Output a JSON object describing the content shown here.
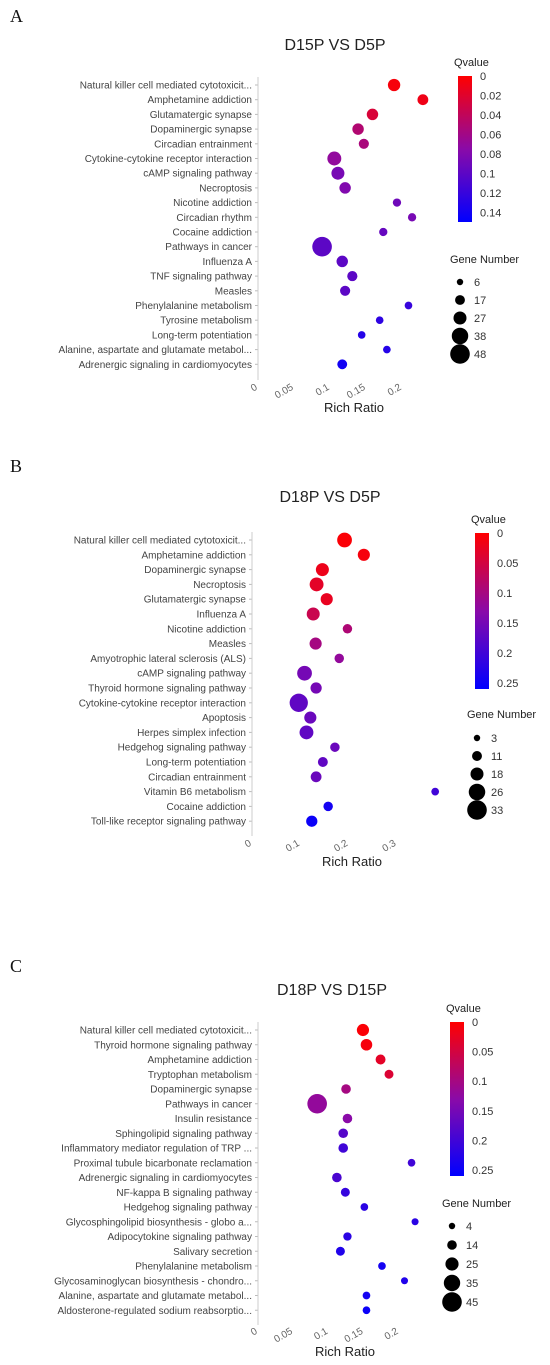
{
  "chart_data": [
    {
      "panel": "A",
      "type": "scatter",
      "title": "D15P VS D5P",
      "xlabel": "Rich Ratio",
      "ylabel": "",
      "xlim": [
        0,
        0.25
      ],
      "xticks": [
        "0",
        "0.05",
        "0.1",
        "0.15",
        "0.2"
      ],
      "color_legend": {
        "title": "Qvalue",
        "range": [
          0,
          0.15
        ],
        "ticks": [
          "0",
          "0.02",
          "0.04",
          "0.06",
          "0.08",
          "0.1",
          "0.12",
          "0.14"
        ]
      },
      "size_legend": {
        "title": "Gene Number",
        "values": [
          "6",
          "17",
          "27",
          "38",
          "48"
        ]
      },
      "grid": false,
      "points": [
        {
          "category": "Natural killer cell mediated cytotoxicit...",
          "x": 0.189,
          "q": 0.005,
          "genes": 25
        },
        {
          "category": "Amphetamine addiction",
          "x": 0.229,
          "q": 0.01,
          "genes": 20
        },
        {
          "category": "Glutamatergic synapse",
          "x": 0.159,
          "q": 0.025,
          "genes": 22
        },
        {
          "category": "Dopaminergic synapse",
          "x": 0.139,
          "q": 0.05,
          "genes": 22
        },
        {
          "category": "Circadian entrainment",
          "x": 0.147,
          "q": 0.055,
          "genes": 18
        },
        {
          "category": "Cytokine-cytokine receptor interaction",
          "x": 0.106,
          "q": 0.07,
          "genes": 30
        },
        {
          "category": "cAMP signaling pathway",
          "x": 0.111,
          "q": 0.085,
          "genes": 27
        },
        {
          "category": "Necroptosis",
          "x": 0.121,
          "q": 0.08,
          "genes": 22
        },
        {
          "category": "Nicotine addiction",
          "x": 0.193,
          "q": 0.09,
          "genes": 12
        },
        {
          "category": "Circadian rhythm",
          "x": 0.214,
          "q": 0.085,
          "genes": 12
        },
        {
          "category": "Cocaine addiction",
          "x": 0.174,
          "q": 0.095,
          "genes": 12
        },
        {
          "category": "Pathways in cancer",
          "x": 0.089,
          "q": 0.1,
          "genes": 48
        },
        {
          "category": "Influenza A",
          "x": 0.117,
          "q": 0.1,
          "genes": 22
        },
        {
          "category": "TNF signaling pathway",
          "x": 0.131,
          "q": 0.1,
          "genes": 18
        },
        {
          "category": "Measles",
          "x": 0.121,
          "q": 0.1,
          "genes": 18
        },
        {
          "category": "Phenylalanine metabolism",
          "x": 0.209,
          "q": 0.12,
          "genes": 10
        },
        {
          "category": "Tyrosine metabolism",
          "x": 0.169,
          "q": 0.125,
          "genes": 10
        },
        {
          "category": "Long-term potentiation",
          "x": 0.144,
          "q": 0.13,
          "genes": 10
        },
        {
          "category": "Alanine, aspartate and glutamate metabol...",
          "x": 0.179,
          "q": 0.13,
          "genes": 10
        },
        {
          "category": "Adrenergic signaling in cardiomyocytes",
          "x": 0.117,
          "q": 0.14,
          "genes": 17
        }
      ]
    },
    {
      "panel": "B",
      "type": "scatter",
      "title": "D18P VS D5P",
      "xlabel": "Rich Ratio",
      "ylabel": "",
      "xlim": [
        0,
        0.39
      ],
      "xticks": [
        "0",
        "0.1",
        "0.2",
        "0.3"
      ],
      "color_legend": {
        "title": "Qvalue",
        "range": [
          0,
          0.26
        ],
        "ticks": [
          "0",
          "0.05",
          "0.1",
          "0.15",
          "0.2",
          "0.25"
        ]
      },
      "size_legend": {
        "title": "Gene Number",
        "values": [
          "3",
          "11",
          "18",
          "26",
          "33"
        ]
      },
      "grid": false,
      "points": [
        {
          "category": "Natural killer cell mediated cytotoxicit...",
          "x": 0.192,
          "q": 0.005,
          "genes": 22
        },
        {
          "category": "Amphetamine addiction",
          "x": 0.232,
          "q": 0.01,
          "genes": 16
        },
        {
          "category": "Dopaminergic synapse",
          "x": 0.146,
          "q": 0.02,
          "genes": 18
        },
        {
          "category": "Necroptosis",
          "x": 0.134,
          "q": 0.03,
          "genes": 20
        },
        {
          "category": "Glutamatergic synapse",
          "x": 0.155,
          "q": 0.025,
          "genes": 16
        },
        {
          "category": "Influenza A",
          "x": 0.127,
          "q": 0.06,
          "genes": 18
        },
        {
          "category": "Nicotine addiction",
          "x": 0.198,
          "q": 0.09,
          "genes": 10
        },
        {
          "category": "Measles",
          "x": 0.132,
          "q": 0.1,
          "genes": 16
        },
        {
          "category": "Amyotrophic lateral sclerosis (ALS)",
          "x": 0.181,
          "q": 0.12,
          "genes": 10
        },
        {
          "category": "cAMP signaling pathway",
          "x": 0.109,
          "q": 0.15,
          "genes": 22
        },
        {
          "category": "Thyroid hormone signaling pathway",
          "x": 0.133,
          "q": 0.15,
          "genes": 14
        },
        {
          "category": "Cytokine-cytokine receptor interaction",
          "x": 0.097,
          "q": 0.17,
          "genes": 30
        },
        {
          "category": "Apoptosis",
          "x": 0.121,
          "q": 0.16,
          "genes": 16
        },
        {
          "category": "Herpes simplex infection",
          "x": 0.113,
          "q": 0.17,
          "genes": 20
        },
        {
          "category": "Hedgehog signaling pathway",
          "x": 0.172,
          "q": 0.16,
          "genes": 10
        },
        {
          "category": "Long-term potentiation",
          "x": 0.147,
          "q": 0.17,
          "genes": 11
        },
        {
          "category": "Circadian entrainment",
          "x": 0.133,
          "q": 0.16,
          "genes": 13
        },
        {
          "category": "Vitamin B6 metabolism",
          "x": 0.38,
          "q": 0.2,
          "genes": 6
        },
        {
          "category": "Cocaine addiction",
          "x": 0.158,
          "q": 0.24,
          "genes": 10
        },
        {
          "category": "Toll-like receptor signaling pathway",
          "x": 0.124,
          "q": 0.25,
          "genes": 14
        }
      ]
    },
    {
      "panel": "C",
      "type": "scatter",
      "title": "D18P VS D15P",
      "xlabel": "Rich Ratio",
      "ylabel": "",
      "xlim": [
        0,
        0.23
      ],
      "xticks": [
        "0",
        "0.05",
        "0.1",
        "0.15",
        "0.2"
      ],
      "color_legend": {
        "title": "Qvalue",
        "range": [
          0,
          0.26
        ],
        "ticks": [
          "0",
          "0.05",
          "0.1",
          "0.15",
          "0.2",
          "0.25"
        ]
      },
      "size_legend": {
        "title": "Gene Number",
        "values": [
          "4",
          "14",
          "25",
          "35",
          "45"
        ]
      },
      "grid": false,
      "points": [
        {
          "category": "Natural killer cell mediated cytotoxicit...",
          "x": 0.149,
          "q": 0.005,
          "genes": 22
        },
        {
          "category": "Thyroid hormone signaling pathway",
          "x": 0.154,
          "q": 0.01,
          "genes": 20
        },
        {
          "category": "Amphetamine addiction",
          "x": 0.174,
          "q": 0.03,
          "genes": 15
        },
        {
          "category": "Tryptophan metabolism",
          "x": 0.186,
          "q": 0.04,
          "genes": 12
        },
        {
          "category": "Dopaminergic synapse",
          "x": 0.125,
          "q": 0.1,
          "genes": 14
        },
        {
          "category": "Pathways in cancer",
          "x": 0.084,
          "q": 0.12,
          "genes": 45
        },
        {
          "category": "Insulin resistance",
          "x": 0.127,
          "q": 0.13,
          "genes": 14
        },
        {
          "category": "Sphingolipid signaling pathway",
          "x": 0.121,
          "q": 0.18,
          "genes": 14
        },
        {
          "category": "Inflammatory mediator regulation of TRP ...",
          "x": 0.121,
          "q": 0.2,
          "genes": 14
        },
        {
          "category": "Proximal tubule bicarbonate reclamation",
          "x": 0.218,
          "q": 0.2,
          "genes": 8
        },
        {
          "category": "Adrenergic signaling in cardiomyocytes",
          "x": 0.112,
          "q": 0.19,
          "genes": 14
        },
        {
          "category": "NF-kappa B signaling pathway",
          "x": 0.124,
          "q": 0.21,
          "genes": 12
        },
        {
          "category": "Hedgehog signaling pathway",
          "x": 0.151,
          "q": 0.22,
          "genes": 8
        },
        {
          "category": "Glycosphingolipid biosynthesis - globo a...",
          "x": 0.223,
          "q": 0.22,
          "genes": 6
        },
        {
          "category": "Adipocytokine signaling pathway",
          "x": 0.127,
          "q": 0.22,
          "genes": 10
        },
        {
          "category": "Salivary secretion",
          "x": 0.117,
          "q": 0.23,
          "genes": 12
        },
        {
          "category": "Phenylalanine metabolism",
          "x": 0.176,
          "q": 0.24,
          "genes": 8
        },
        {
          "category": "Glycosaminoglycan biosynthesis - chondro...",
          "x": 0.208,
          "q": 0.23,
          "genes": 6
        },
        {
          "category": "Alanine, aspartate and glutamate metabol...",
          "x": 0.154,
          "q": 0.24,
          "genes": 8
        },
        {
          "category": "Aldosterone-regulated sodium reabsorptio...",
          "x": 0.154,
          "q": 0.25,
          "genes": 8
        }
      ]
    }
  ]
}
